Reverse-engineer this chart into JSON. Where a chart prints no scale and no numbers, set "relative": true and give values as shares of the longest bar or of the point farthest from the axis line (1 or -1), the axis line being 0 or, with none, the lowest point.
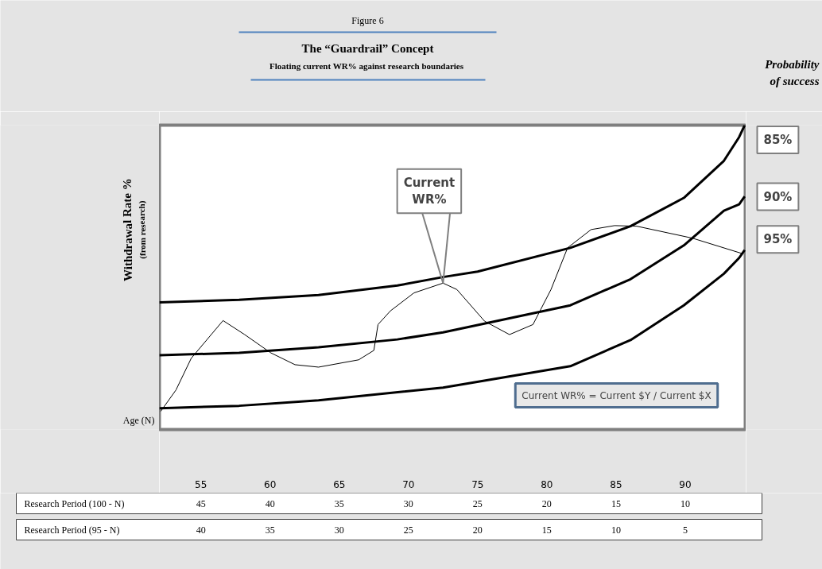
{
  "chart_data": {
    "type": "line",
    "relative": true,
    "title": "The “Guardrail” Concept",
    "subtitle": "Floating  current WR% against research boundaries",
    "xlabel": "Age (N)",
    "ylabel": "Withdrawal Rate %\n(from research)",
    "legend_title": "Probability of success",
    "xlim": [
      52,
      94.4
    ],
    "xticks": [
      55,
      60,
      65,
      70,
      75,
      80,
      85,
      90
    ],
    "grid": false,
    "marker": "none",
    "line_style": "solid",
    "series": [
      {
        "name": "85%",
        "color": "#000000",
        "x": [
          52.0,
          57.76,
          63.5,
          69.2,
          72.5,
          75.0,
          81.7,
          86.05,
          89.9,
          92.8,
          93.9,
          94.3
        ],
        "values": [
          0.418,
          0.426,
          0.442,
          0.473,
          0.501,
          0.519,
          0.597,
          0.668,
          0.761,
          0.883,
          0.961,
          1.0
        ]
      },
      {
        "name": "90%",
        "color": "#000000",
        "x": [
          52.0,
          57.76,
          63.5,
          69.2,
          72.5,
          81.7,
          86.05,
          89.9,
          92.8,
          93.9,
          94.3
        ],
        "values": [
          0.244,
          0.252,
          0.27,
          0.296,
          0.319,
          0.408,
          0.494,
          0.605,
          0.719,
          0.74,
          0.766
        ]
      },
      {
        "name": "95%",
        "color": "#000000",
        "x": [
          52.0,
          57.76,
          63.5,
          72.5,
          81.7,
          86.05,
          89.9,
          92.8,
          93.9,
          94.3
        ],
        "values": [
          0.07,
          0.078,
          0.096,
          0.138,
          0.208,
          0.294,
          0.408,
          0.512,
          0.564,
          0.59
        ]
      },
      {
        "name": "Current WR%",
        "color": "#000000",
        "x": [
          52.1,
          53.2,
          54.3,
          56.6,
          58.16,
          60.05,
          61.8,
          63.5,
          66.4,
          67.5,
          67.8,
          68.7,
          70.4,
          72.5,
          73.5,
          75.5,
          77.3,
          79.0,
          80.3,
          81.5,
          83.2,
          84.9,
          86.5,
          90.5,
          94.2
        ],
        "values": [
          0.06,
          0.13,
          0.234,
          0.358,
          0.312,
          0.252,
          0.213,
          0.205,
          0.229,
          0.26,
          0.345,
          0.39,
          0.449,
          0.481,
          0.46,
          0.356,
          0.312,
          0.345,
          0.46,
          0.597,
          0.657,
          0.67,
          0.668,
          0.629,
          0.577
        ]
      }
    ],
    "annotations": [
      "Figure 6",
      "Current WR% = Current $Y / Current $X",
      "Research Period (100 - N)",
      "45",
      "40",
      "35",
      "30",
      "25",
      "20",
      "15",
      "10",
      "Research Period   (95 - N)",
      "40",
      "35",
      "30",
      "25",
      "20",
      "15",
      "10",
      "5"
    ]
  }
}
